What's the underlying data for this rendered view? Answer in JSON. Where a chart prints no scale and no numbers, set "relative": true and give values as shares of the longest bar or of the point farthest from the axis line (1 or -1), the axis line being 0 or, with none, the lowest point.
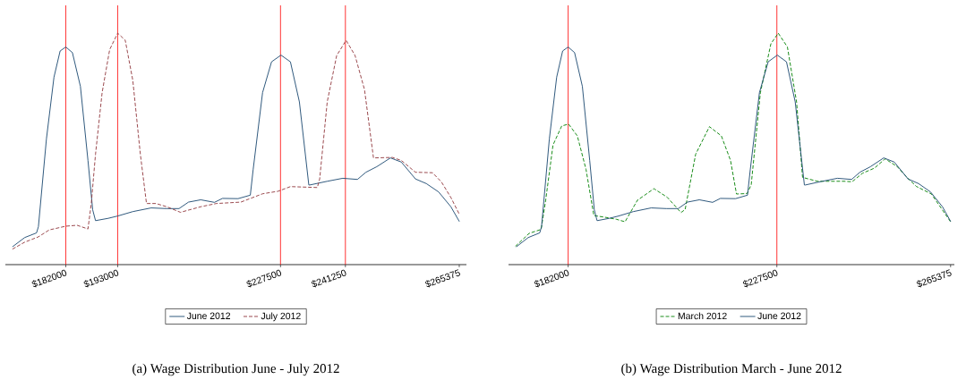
{
  "chart_data": [
    {
      "type": "line",
      "relative": true,
      "title": "(a) Wage Distribution June - July 2012",
      "legend": "bottom",
      "tick_labels": "x",
      "xlim": [
        169200,
        266900
      ],
      "xticks": [
        {
          "value": 182000,
          "label": "$182000"
        },
        {
          "value": 193000,
          "label": "$193000"
        },
        {
          "value": 227500,
          "label": "$227500"
        },
        {
          "value": 241250,
          "label": "$241250"
        },
        {
          "value": 265375,
          "label": "$265375"
        }
      ],
      "ref_lines": [
        {
          "axis": "x",
          "value": 182000,
          "color": "#ff0000"
        },
        {
          "axis": "x",
          "value": 193000,
          "color": "#ff0000"
        },
        {
          "axis": "x",
          "value": 227500,
          "color": "#ff0000"
        },
        {
          "axis": "x",
          "value": 241250,
          "color": "#ff0000"
        }
      ],
      "series": [
        {
          "name": "June 2012",
          "color": "#1a476f",
          "line_style": "solid",
          "x": [
            170700,
            173300,
            175800,
            176200,
            177900,
            179500,
            180800,
            182000,
            183400,
            185100,
            186700,
            187700,
            188300,
            191000,
            193000,
            196200,
            200100,
            203400,
            206000,
            208000,
            210600,
            213500,
            215200,
            218500,
            221100,
            221700,
            223700,
            225600,
            227600,
            229600,
            231500,
            233500,
            233700,
            237400,
            240700,
            243800,
            245600,
            247900,
            250800,
            253100,
            256100,
            258400,
            261000,
            263600,
            265400
          ],
          "values": [
            0.077,
            0.117,
            0.137,
            0.164,
            0.543,
            0.81,
            0.923,
            0.94,
            0.916,
            0.77,
            0.45,
            0.237,
            0.19,
            0.2,
            0.21,
            0.229,
            0.245,
            0.242,
            0.242,
            0.27,
            0.28,
            0.269,
            0.286,
            0.285,
            0.3,
            0.41,
            0.743,
            0.876,
            0.905,
            0.876,
            0.703,
            0.344,
            0.344,
            0.36,
            0.373,
            0.368,
            0.399,
            0.423,
            0.461,
            0.443,
            0.37,
            0.35,
            0.314,
            0.25,
            0.186
          ]
        },
        {
          "name": "July 2012",
          "color": "#90353b",
          "line_style": "dashed",
          "x": [
            170700,
            173300,
            176200,
            178500,
            182000,
            184400,
            186700,
            187400,
            188300,
            189700,
            191300,
            193000,
            194600,
            196200,
            197800,
            199100,
            201100,
            203400,
            206300,
            210600,
            213900,
            219100,
            223700,
            227000,
            229600,
            235300,
            235800,
            237400,
            239400,
            241400,
            243300,
            245300,
            247200,
            251200,
            253100,
            256100,
            259700,
            261600,
            263600,
            265400
          ],
          "values": [
            0.067,
            0.097,
            0.12,
            0.15,
            0.166,
            0.17,
            0.154,
            0.264,
            0.477,
            0.743,
            0.929,
            1.0,
            0.969,
            0.796,
            0.477,
            0.264,
            0.264,
            0.25,
            0.226,
            0.25,
            0.264,
            0.27,
            0.306,
            0.317,
            0.337,
            0.333,
            0.37,
            0.703,
            0.903,
            0.969,
            0.903,
            0.756,
            0.461,
            0.463,
            0.45,
            0.399,
            0.397,
            0.357,
            0.29,
            0.217
          ]
        }
      ]
    },
    {
      "type": "line",
      "relative": true,
      "title": "(b) Wage Distribution March - June 2012",
      "legend": "bottom",
      "tick_labels": "x",
      "xlim": [
        169000,
        266200
      ],
      "xticks": [
        {
          "value": 182000,
          "label": "$182000"
        },
        {
          "value": 227500,
          "label": "$227500"
        },
        {
          "value": 265375,
          "label": "$265375"
        }
      ],
      "ref_lines": [
        {
          "axis": "x",
          "value": 182000,
          "color": "#ff0000"
        },
        {
          "axis": "x",
          "value": 227500,
          "color": "#ff0000"
        }
      ],
      "series": [
        {
          "name": "March 2012",
          "color": "#008000",
          "line_style": "dashed",
          "x": [
            170500,
            173500,
            176100,
            177100,
            178700,
            180600,
            182100,
            184000,
            185900,
            187600,
            189900,
            192500,
            194400,
            197100,
            200700,
            203600,
            206600,
            207500,
            209800,
            212800,
            215400,
            217400,
            218700,
            221000,
            221900,
            223900,
            226200,
            227800,
            229800,
            231800,
            233100,
            236300,
            242200,
            243900,
            246200,
            248800,
            251100,
            253700,
            256000,
            257900,
            261200,
            265375
          ],
          "values": [
            0.079,
            0.135,
            0.152,
            0.278,
            0.517,
            0.599,
            0.607,
            0.556,
            0.411,
            0.212,
            0.205,
            0.196,
            0.185,
            0.278,
            0.328,
            0.291,
            0.225,
            0.238,
            0.477,
            0.596,
            0.556,
            0.45,
            0.305,
            0.307,
            0.344,
            0.742,
            0.954,
            1.0,
            0.94,
            0.702,
            0.377,
            0.36,
            0.36,
            0.358,
            0.395,
            0.417,
            0.457,
            0.424,
            0.374,
            0.338,
            0.305,
            0.185
          ]
        },
        {
          "name": "June 2012",
          "color": "#1a476f",
          "line_style": "solid",
          "x": [
            170700,
            173300,
            175800,
            176200,
            177900,
            179500,
            180800,
            182000,
            183400,
            185100,
            186700,
            187700,
            188300,
            191000,
            193000,
            196200,
            200100,
            203400,
            206000,
            208000,
            210600,
            213500,
            215200,
            218500,
            221100,
            221700,
            223700,
            225600,
            227600,
            229600,
            231500,
            233500,
            233700,
            237400,
            240700,
            243800,
            245600,
            247900,
            250800,
            253100,
            256100,
            258400,
            261000,
            263600,
            265400
          ],
          "values": [
            0.077,
            0.117,
            0.137,
            0.164,
            0.543,
            0.81,
            0.923,
            0.94,
            0.916,
            0.77,
            0.45,
            0.237,
            0.19,
            0.2,
            0.21,
            0.229,
            0.245,
            0.242,
            0.242,
            0.27,
            0.28,
            0.269,
            0.286,
            0.285,
            0.3,
            0.41,
            0.743,
            0.876,
            0.905,
            0.876,
            0.703,
            0.344,
            0.344,
            0.36,
            0.373,
            0.368,
            0.399,
            0.423,
            0.461,
            0.443,
            0.37,
            0.35,
            0.314,
            0.25,
            0.186
          ]
        }
      ]
    }
  ]
}
